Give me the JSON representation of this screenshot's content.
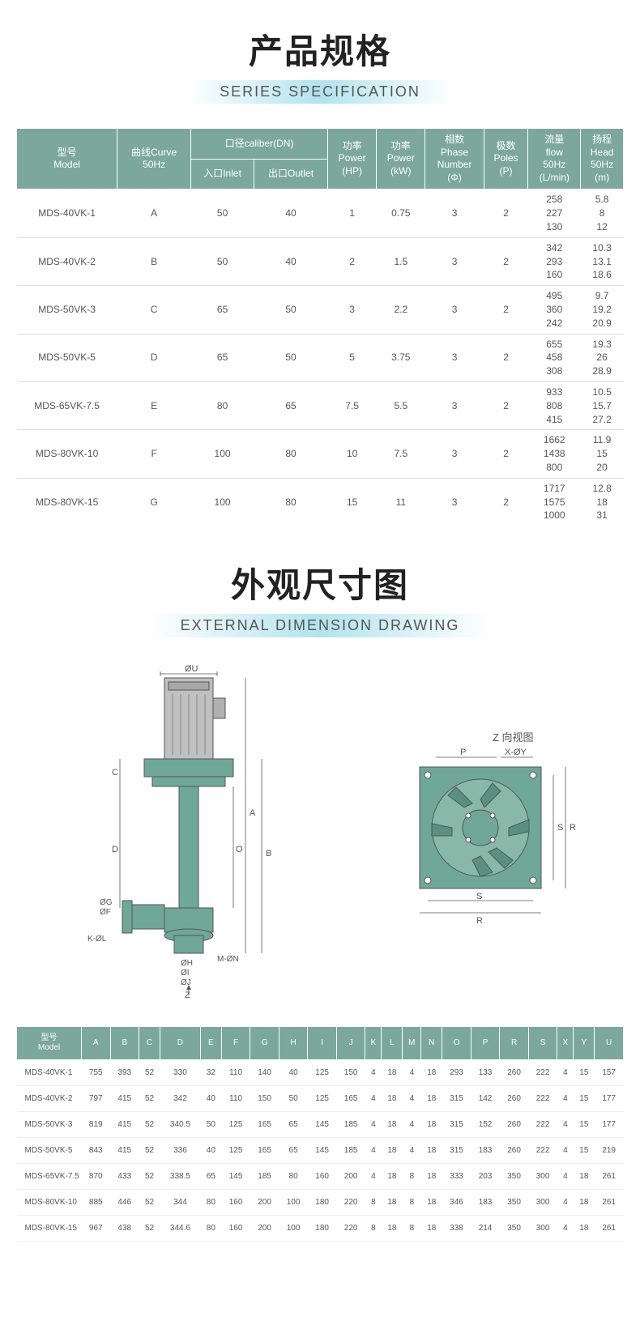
{
  "section1": {
    "title_cn": "产品规格",
    "title_en": "SERIES SPECIFICATION"
  },
  "spec_header": {
    "model": "型号\nModel",
    "curve": "曲线Curve\n50Hz",
    "caliber": "口径caliber(DN)",
    "inlet": "入口Inlet",
    "outlet": "出口Outlet",
    "power_hp": "功率\nPower\n(HP)",
    "power_kw": "功率\nPower\n(kW)",
    "phase": "相数\nPhase\nNumber\n(Φ)",
    "poles": "极数\nPoles\n(P)",
    "flow": "流量\nflow\n50Hz\n(L/min)",
    "head": "扬程\nHead\n50Hz\n(m)"
  },
  "spec_rows": [
    {
      "model": "MDS-40VK-1",
      "curve": "A",
      "inlet": "50",
      "outlet": "40",
      "hp": "1",
      "kw": "0.75",
      "phase": "3",
      "poles": "2",
      "flow": "258\n227\n130",
      "head": "5.8\n8\n12"
    },
    {
      "model": "MDS-40VK-2",
      "curve": "B",
      "inlet": "50",
      "outlet": "40",
      "hp": "2",
      "kw": "1.5",
      "phase": "3",
      "poles": "2",
      "flow": "342\n293\n160",
      "head": "10.3\n13.1\n18.6"
    },
    {
      "model": "MDS-50VK-3",
      "curve": "C",
      "inlet": "65",
      "outlet": "50",
      "hp": "3",
      "kw": "2.2",
      "phase": "3",
      "poles": "2",
      "flow": "495\n360\n242",
      "head": "9.7\n19.2\n20.9"
    },
    {
      "model": "MDS-50VK-5",
      "curve": "D",
      "inlet": "65",
      "outlet": "50",
      "hp": "5",
      "kw": "3.75",
      "phase": "3",
      "poles": "2",
      "flow": "655\n458\n308",
      "head": "19.3\n26\n28.9"
    },
    {
      "model": "MDS-65VK-7.5",
      "curve": "E",
      "inlet": "80",
      "outlet": "65",
      "hp": "7.5",
      "kw": "5.5",
      "phase": "3",
      "poles": "2",
      "flow": "933\n808\n415",
      "head": "10.5\n15.7\n27.2"
    },
    {
      "model": "MDS-80VK-10",
      "curve": "F",
      "inlet": "100",
      "outlet": "80",
      "hp": "10",
      "kw": "7.5",
      "phase": "3",
      "poles": "2",
      "flow": "1662\n1438\n800",
      "head": "11.9\n15\n20"
    },
    {
      "model": "MDS-80VK-15",
      "curve": "G",
      "inlet": "100",
      "outlet": "80",
      "hp": "15",
      "kw": "11",
      "phase": "3",
      "poles": "2",
      "flow": "1717\n1575\n1000",
      "head": "12.8\n18\n31"
    }
  ],
  "section2": {
    "title_cn": "外观尺寸图",
    "title_en": "EXTERNAL DIMENSION DRAWING",
    "z_view_label": "Z 向视图",
    "labels": {
      "phiU": "ØU",
      "A": "A",
      "B": "B",
      "C": "C",
      "D": "D",
      "O": "O",
      "phiG": "ØG",
      "phiF": "ØF",
      "KphiL": "K-ØL",
      "phiH": "ØH",
      "phiI": "ØI",
      "phiJ": "ØJ",
      "MphiN": "M-ØN",
      "Z": "Z",
      "P": "P",
      "XphiY": "X-ØY",
      "S": "S",
      "R": "R"
    }
  },
  "dim_header": {
    "model": "型号\nModel",
    "cols": [
      "A",
      "B",
      "C",
      "D",
      "E",
      "F",
      "G",
      "H",
      "I",
      "J",
      "K",
      "L",
      "M",
      "N",
      "O",
      "P",
      "R",
      "S",
      "X",
      "Y",
      "U"
    ]
  },
  "dim_rows": [
    {
      "model": "MDS-40VK-1",
      "v": [
        "755",
        "393",
        "52",
        "330",
        "32",
        "110",
        "140",
        "40",
        "125",
        "150",
        "4",
        "18",
        "4",
        "18",
        "293",
        "133",
        "260",
        "222",
        "4",
        "15",
        "157"
      ]
    },
    {
      "model": "MDS-40VK-2",
      "v": [
        "797",
        "415",
        "52",
        "342",
        "40",
        "110",
        "150",
        "50",
        "125",
        "165",
        "4",
        "18",
        "4",
        "18",
        "315",
        "142",
        "260",
        "222",
        "4",
        "15",
        "177"
      ]
    },
    {
      "model": "MDS-50VK-3",
      "v": [
        "819",
        "415",
        "52",
        "340.5",
        "50",
        "125",
        "165",
        "65",
        "145",
        "185",
        "4",
        "18",
        "4",
        "18",
        "315",
        "152",
        "260",
        "222",
        "4",
        "15",
        "177"
      ]
    },
    {
      "model": "MDS-50VK-5",
      "v": [
        "843",
        "415",
        "52",
        "336",
        "40",
        "125",
        "165",
        "65",
        "145",
        "185",
        "4",
        "18",
        "4",
        "18",
        "315",
        "183",
        "260",
        "222",
        "4",
        "15",
        "219"
      ]
    },
    {
      "model": "MDS-65VK-7.5",
      "v": [
        "870",
        "433",
        "52",
        "338.5",
        "65",
        "145",
        "185",
        "80",
        "160",
        "200",
        "4",
        "18",
        "8",
        "18",
        "333",
        "203",
        "350",
        "300",
        "4",
        "18",
        "261"
      ]
    },
    {
      "model": "MDS-80VK-10",
      "v": [
        "885",
        "446",
        "52",
        "344",
        "80",
        "160",
        "200",
        "100",
        "180",
        "220",
        "8",
        "18",
        "8",
        "18",
        "346",
        "183",
        "350",
        "300",
        "4",
        "18",
        "261"
      ]
    },
    {
      "model": "MDS-80VK-15",
      "v": [
        "967",
        "438",
        "52",
        "344.6",
        "80",
        "160",
        "200",
        "100",
        "180",
        "220",
        "8",
        "18",
        "8",
        "18",
        "338",
        "214",
        "350",
        "300",
        "4",
        "18",
        "261"
      ]
    }
  ],
  "colors": {
    "header_bg": "#7ba89a",
    "pump_body": "#6fa896",
    "motor": "#b8b8b8",
    "line": "#555"
  }
}
